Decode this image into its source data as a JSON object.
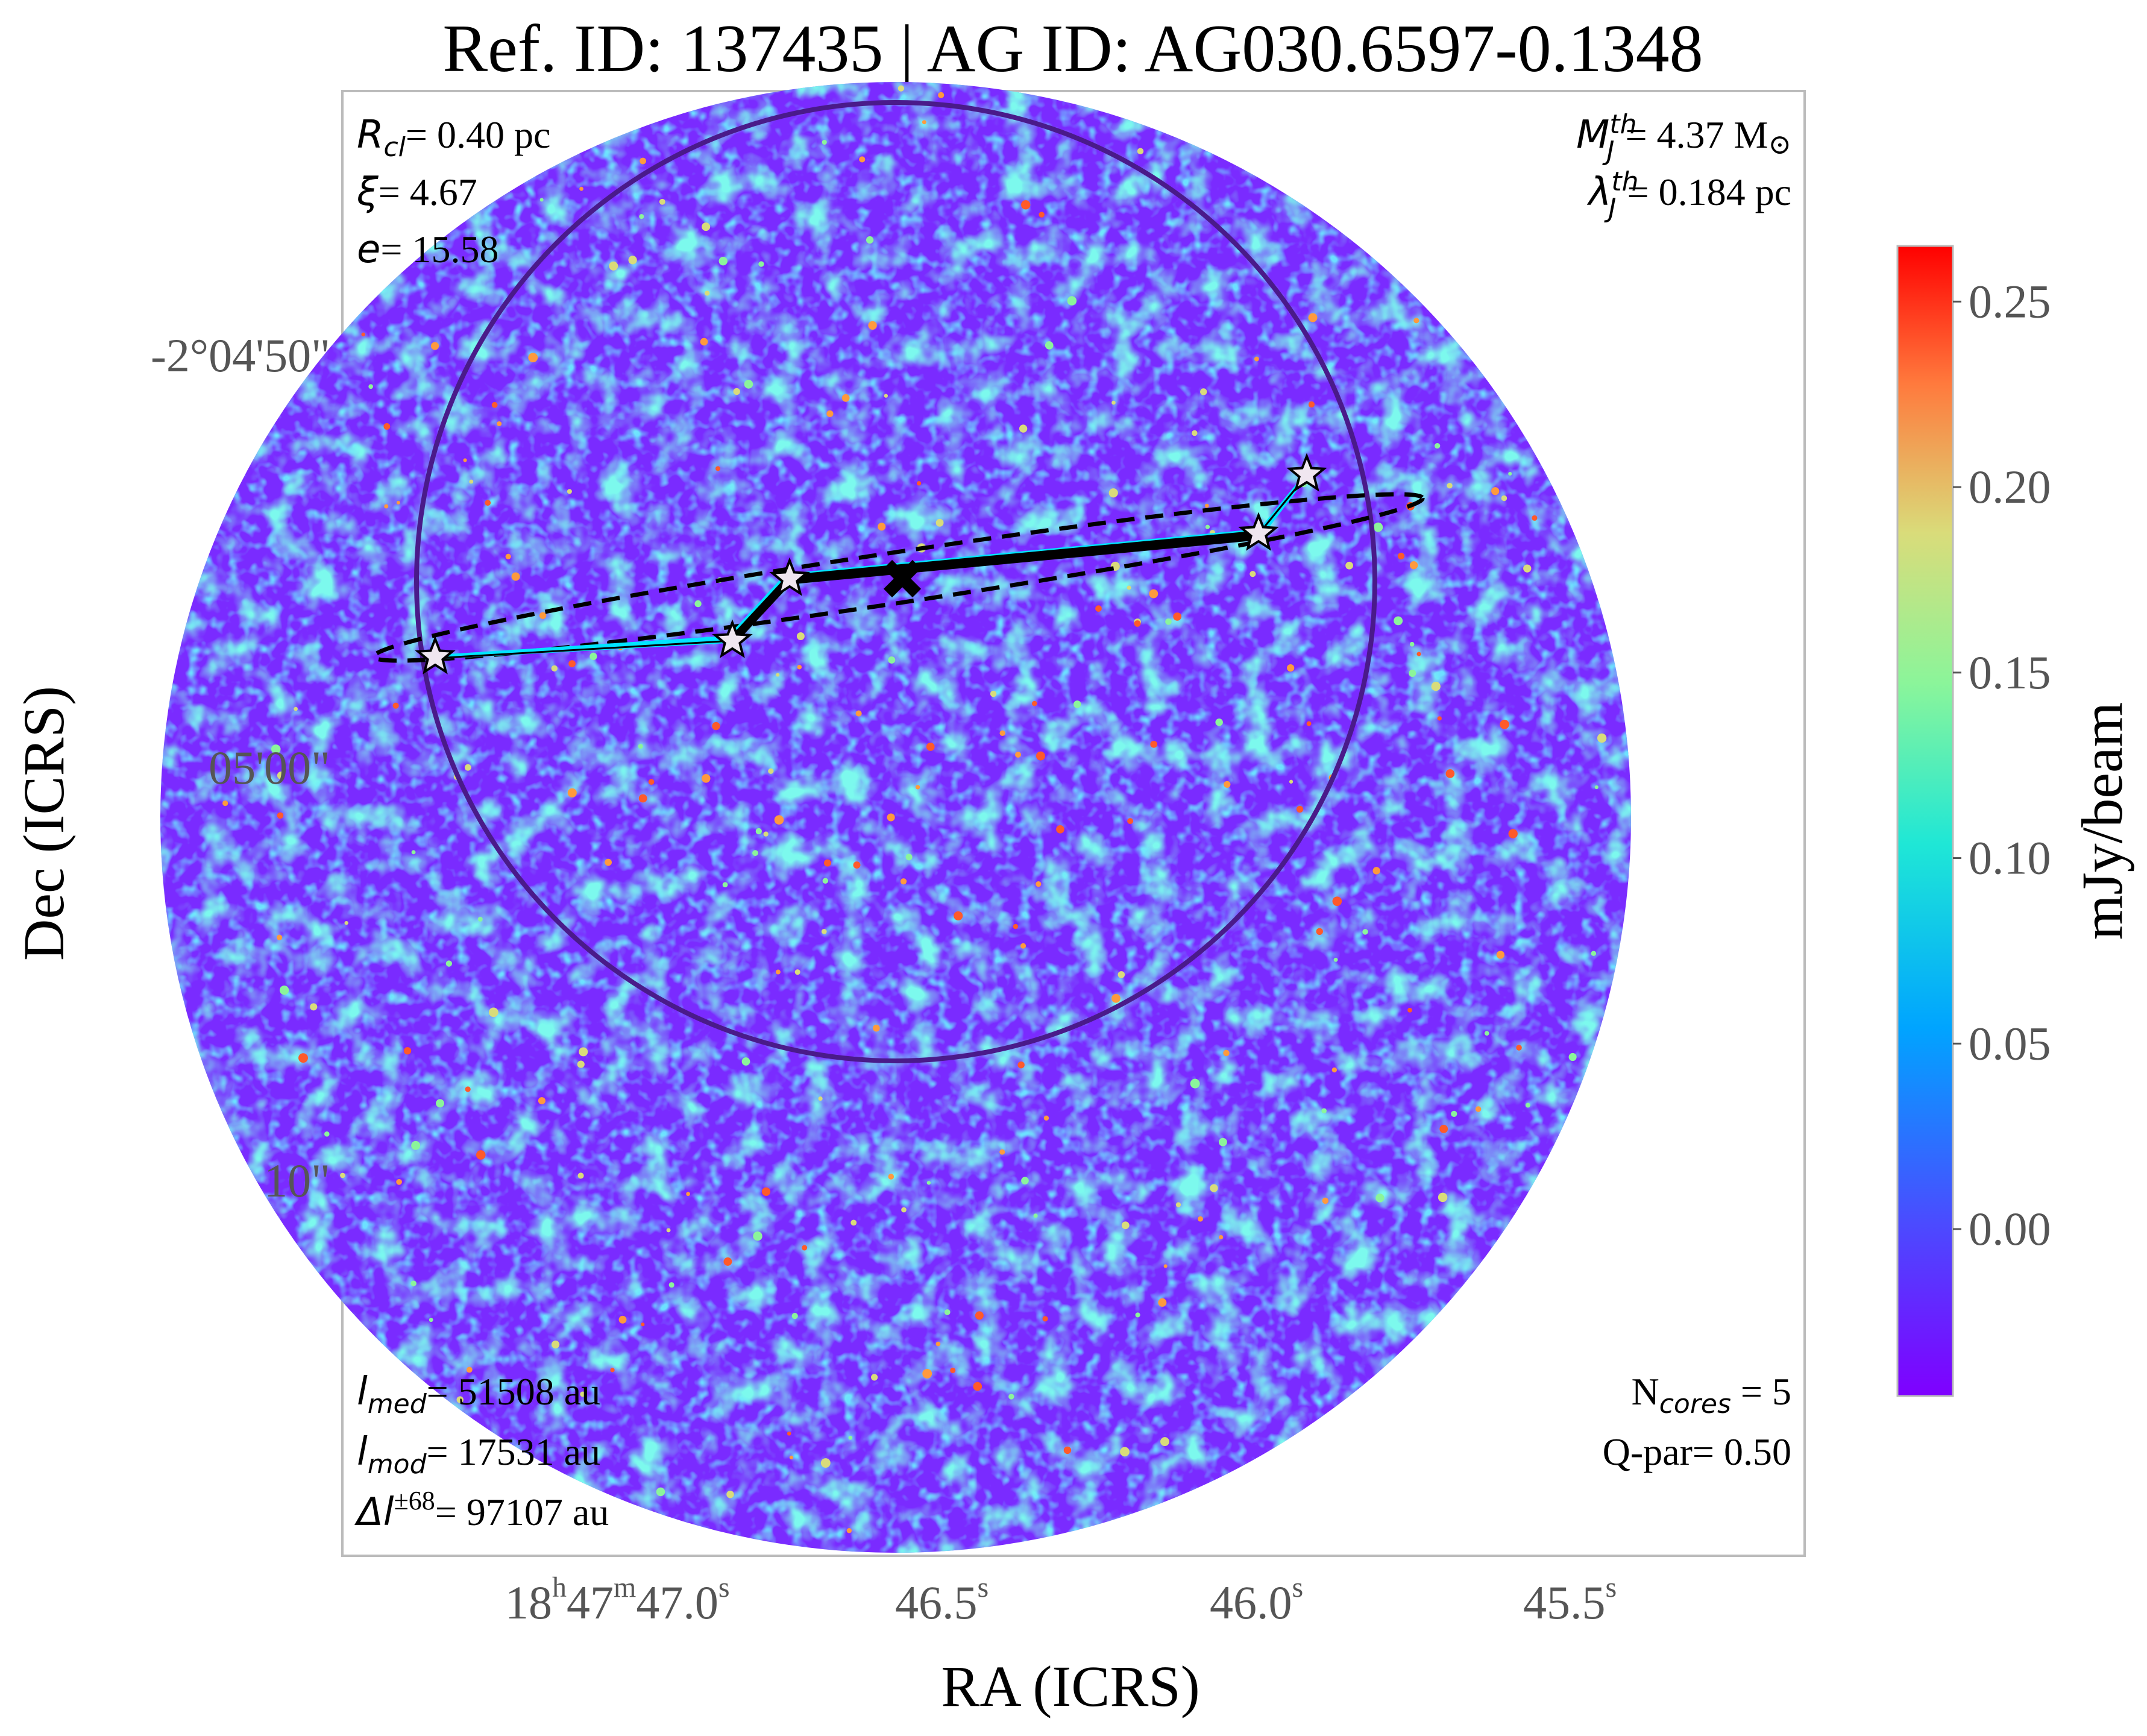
{
  "title": "Ref. ID: 137435 | AG ID: AG030.6597-0.1348",
  "chart_data": {
    "type": "heatmap",
    "title": "Ref. ID: 137435 | AG ID: AG030.6597-0.1348",
    "xlabel": "RA (ICRS)",
    "ylabel": "Dec (ICRS)",
    "x_ticks": [
      {
        "h": "18",
        "m": "47",
        "s": "47.0",
        "label": "18h47m47.0s"
      },
      {
        "s": "46.5",
        "label": "46.5s"
      },
      {
        "s": "46.0",
        "label": "46.0s"
      },
      {
        "s": "45.5",
        "label": "45.5s"
      }
    ],
    "y_ticks": [
      "-2°04'50\"",
      "05'00\"",
      "10\""
    ],
    "colorbar": {
      "label": "mJy/beam",
      "ticks": [
        "0.25",
        "0.20",
        "0.15",
        "0.10",
        "0.05",
        "0.00"
      ],
      "range": [
        -0.045,
        0.265
      ],
      "colormap": "rainbow"
    },
    "annotations": {
      "top_left": {
        "R_cl": {
          "symbol": "R",
          "sub": "cl",
          "value": "= 0.40 pc"
        },
        "xi": {
          "symbol": "ξ",
          "value": "= 4.67"
        },
        "e": {
          "symbol": "e",
          "value": "= 15.58"
        }
      },
      "top_right": {
        "MJ": {
          "symbol": "M",
          "sup": "th",
          "sub": "J",
          "value": "= 4.37 M",
          "unit_symbol": "⊙"
        },
        "lambdaJ": {
          "symbol": "λ",
          "sup": "th",
          "sub": "J",
          "value": "= 0.184 pc"
        }
      },
      "bottom_left": {
        "l_med": {
          "symbol": "l",
          "sub": "med",
          "value": "= 51508 au"
        },
        "l_mod": {
          "symbol": "l",
          "sub": "mod",
          "value": "= 17531 au"
        },
        "dl": {
          "symbol": "Δl",
          "sup": "±68",
          "value": "= 97107 au"
        }
      },
      "bottom_right": {
        "N_cores": {
          "symbol": "N",
          "sub": "cores",
          "value": " = 5"
        },
        "Q_par": {
          "text": "Q-par= 0.50"
        }
      }
    },
    "cores": 5
  },
  "colors": {
    "map_background": "#7b2cff",
    "clump_circle": "#4a1a8a",
    "mst_thin": "#00e5ff",
    "mst_thick": "#000000",
    "ellipse": "#000000",
    "star_fill": "#f0e6f0"
  }
}
